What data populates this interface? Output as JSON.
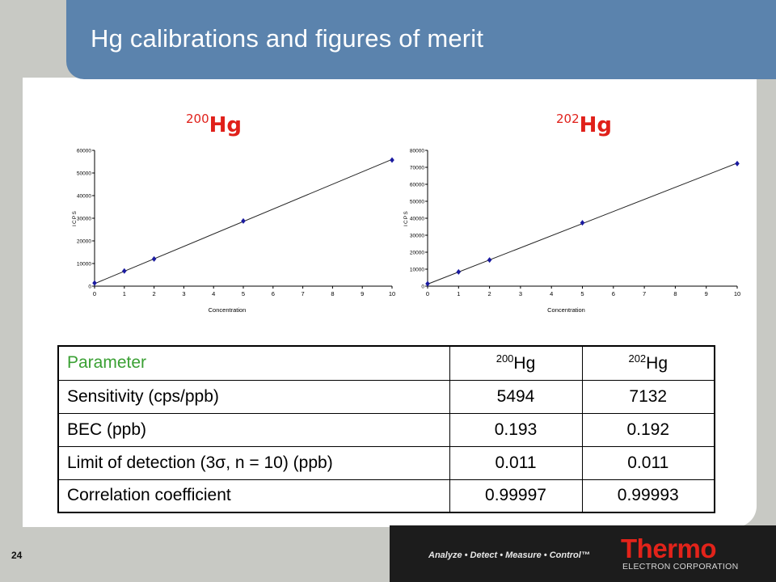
{
  "slide": {
    "title": "Hg calibrations and figures of merit",
    "page_number": "24"
  },
  "charts": [
    {
      "heading_mass": "200",
      "heading_element": "Hg"
    },
    {
      "heading_mass": "202",
      "heading_element": "Hg"
    }
  ],
  "chart_data": [
    {
      "type": "scatter",
      "title": "",
      "xlabel": "Concentration",
      "ylabel": "ICPS",
      "xlim": [
        0,
        10
      ],
      "ylim": [
        0,
        60000
      ],
      "x_ticks": [
        "0",
        "1",
        "2",
        "3",
        "4",
        "5",
        "6",
        "7",
        "8",
        "9",
        "10"
      ],
      "y_ticks": [
        "0",
        "10000",
        "20000",
        "30000",
        "40000",
        "50000",
        "60000"
      ],
      "points": [
        [
          0,
          1400
        ],
        [
          1,
          6700
        ],
        [
          2,
          12000
        ],
        [
          5,
          28800
        ],
        [
          10,
          55700
        ]
      ],
      "fit_line": [
        [
          0,
          1100
        ],
        [
          10,
          56000
        ]
      ],
      "color": "#1a1aa0"
    },
    {
      "type": "scatter",
      "title": "",
      "xlabel": "Concentration",
      "ylabel": "ICPS",
      "xlim": [
        0,
        10
      ],
      "ylim": [
        0,
        80000
      ],
      "x_ticks": [
        "0",
        "1",
        "2",
        "3",
        "4",
        "5",
        "6",
        "7",
        "8",
        "9",
        "10"
      ],
      "y_ticks": [
        "0",
        "10000",
        "20000",
        "30000",
        "40000",
        "50000",
        "60000",
        "70000",
        "80000"
      ],
      "points": [
        [
          0,
          1400
        ],
        [
          1,
          8400
        ],
        [
          2,
          15400
        ],
        [
          5,
          37300
        ],
        [
          10,
          72200
        ]
      ],
      "fit_line": [
        [
          0,
          1200
        ],
        [
          10,
          72500
        ]
      ],
      "color": "#1a1aa0"
    }
  ],
  "table": {
    "header": {
      "parameter": "Parameter",
      "mass1": "200",
      "el1": "Hg",
      "mass2": "202",
      "el2": "Hg"
    },
    "rows": [
      {
        "parameter": "Sensitivity (cps/ppb)",
        "v1": "5494",
        "v2": "7132"
      },
      {
        "parameter": "BEC (ppb)",
        "v1": "0.193",
        "v2": "0.192"
      },
      {
        "parameter": "Limit of detection (3σ, n = 10) (ppb)",
        "v1": "0.011",
        "v2": "0.011"
      },
      {
        "parameter": "Correlation coefficient",
        "v1": "0.99997",
        "v2": "0.99993"
      }
    ]
  },
  "footer": {
    "slogan": "Analyze • Detect • Measure • Control™",
    "brand": "Thermo",
    "brand_sub": "ELECTRON CORPORATION"
  },
  "colors": {
    "title_bar": "#5b83ad",
    "heading_red": "#e0201a",
    "parameter_green": "#3aa033",
    "brand_red": "#e2231a"
  }
}
